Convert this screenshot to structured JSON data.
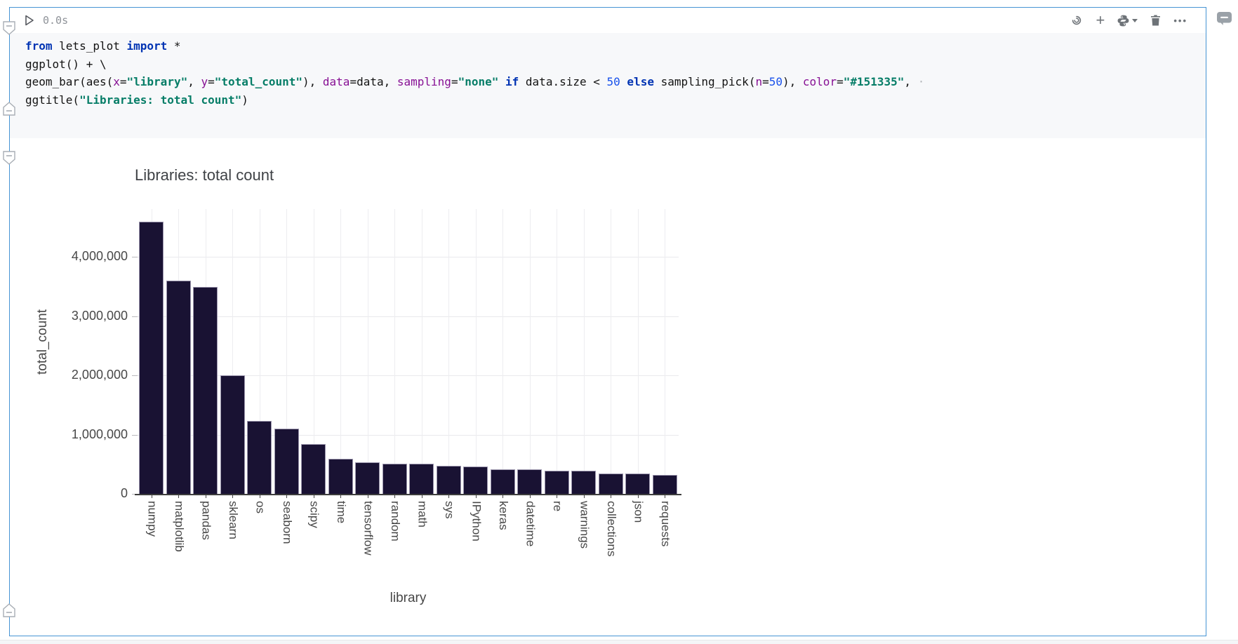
{
  "cell": {
    "toolbar": {
      "exec_time": "0.0s",
      "icons": [
        "run-icon",
        "ai-assistant-icon",
        "add-cell-icon",
        "python-interpreter-icon",
        "caret-down-icon",
        "delete-cell-icon",
        "more-actions-icon"
      ]
    },
    "code": {
      "lines": [
        [
          [
            "kw",
            "from"
          ],
          [
            "pl",
            " lets_plot "
          ],
          [
            "kw",
            "import"
          ],
          [
            "pl",
            " *"
          ]
        ],
        [
          [
            "pl",
            "ggplot() + \\"
          ]
        ],
        [
          [
            "pl",
            "geom_bar(aes("
          ],
          [
            "arg",
            "x"
          ],
          [
            "pl",
            "="
          ],
          [
            "str",
            "\"library\""
          ],
          [
            "pl",
            ", "
          ],
          [
            "arg",
            "y"
          ],
          [
            "pl",
            "="
          ],
          [
            "str",
            "\"total_count\""
          ],
          [
            "pl",
            "), "
          ],
          [
            "arg",
            "data"
          ],
          [
            "pl",
            "=data, "
          ],
          [
            "arg",
            "sampling"
          ],
          [
            "pl",
            "="
          ],
          [
            "str",
            "\"none\""
          ],
          [
            "pl",
            " "
          ],
          [
            "kw",
            "if"
          ],
          [
            "pl",
            " data.size < "
          ],
          [
            "num",
            "50"
          ],
          [
            "pl",
            " "
          ],
          [
            "kw",
            "else"
          ],
          [
            "pl",
            " sampling_pick("
          ],
          [
            "arg",
            "n"
          ],
          [
            "pl",
            "="
          ],
          [
            "num",
            "50"
          ],
          [
            "pl",
            "), "
          ],
          [
            "arg",
            "color"
          ],
          [
            "pl",
            "="
          ],
          [
            "str",
            "\"#151335\""
          ],
          [
            "pl",
            ", "
          ],
          [
            "dim",
            "·"
          ]
        ],
        [
          [
            "pl",
            "ggtitle("
          ],
          [
            "str",
            "\"Libraries: total count\""
          ],
          [
            "pl",
            ")"
          ]
        ]
      ]
    }
  },
  "gutter": {
    "fold_markers": [
      "collapse-input-marker",
      "collapse-input-end-marker",
      "collapse-output-marker",
      "collapse-output-end-marker"
    ]
  },
  "comment": {
    "icon": "comment-bubble-icon"
  },
  "chart_data": {
    "type": "bar",
    "title": "Libraries: total count",
    "xlabel": "library",
    "ylabel": "total_count",
    "categories": [
      "numpy",
      "matplotlib",
      "pandas",
      "sklearn",
      "os",
      "seaborn",
      "scipy",
      "time",
      "tensorflow",
      "random",
      "math",
      "sys",
      "IPython",
      "keras",
      "datetime",
      "re",
      "warnings",
      "collections",
      "json",
      "requests"
    ],
    "values": [
      4600000,
      3600000,
      3500000,
      2000000,
      1230000,
      1100000,
      840000,
      590000,
      530000,
      505000,
      505000,
      475000,
      460000,
      415000,
      415000,
      388000,
      386000,
      345000,
      342000,
      320000
    ],
    "yticks": [
      {
        "label": "4,000,000",
        "value": 4000000
      },
      {
        "label": "3,000,000",
        "value": 3000000
      },
      {
        "label": "2,000,000",
        "value": 2000000
      },
      {
        "label": "1,000,000",
        "value": 1000000
      },
      {
        "label": "0",
        "value": 0
      }
    ],
    "ylim": [
      0,
      4810000
    ],
    "grid": true,
    "legend_position": "none",
    "bar_fill": "#191233",
    "bar_stroke": "#9b95ad",
    "gridline_color": "#e9e9ec"
  }
}
